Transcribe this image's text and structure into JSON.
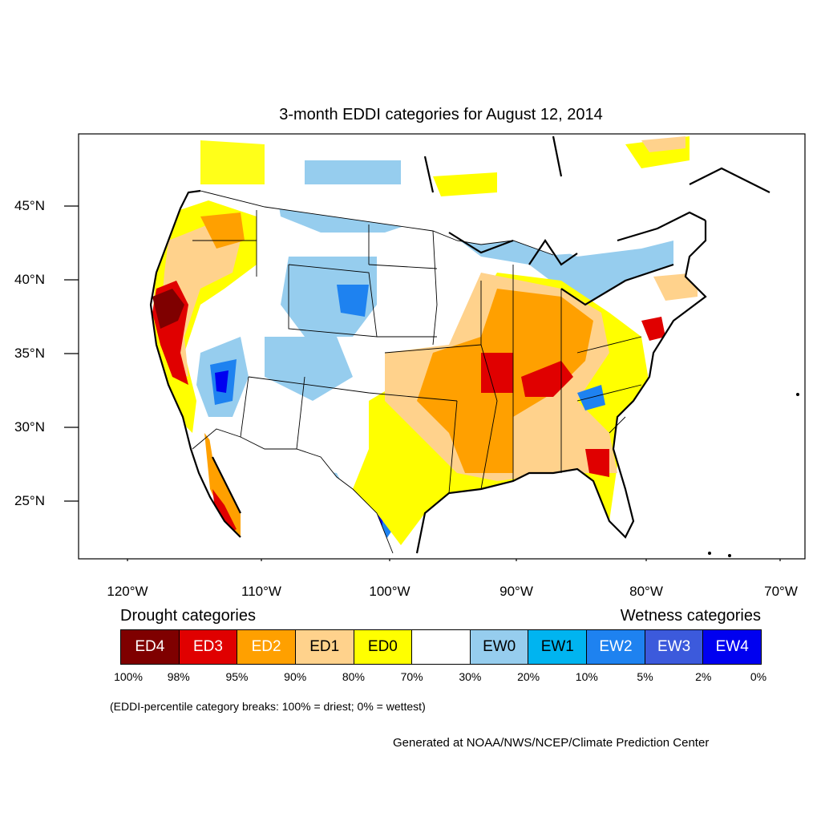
{
  "title": "3-month EDDI categories for August 12, 2014",
  "lat_labels": [
    "45°N",
    "40°N",
    "35°N",
    "30°N",
    "25°N"
  ],
  "lon_labels": [
    "120°W",
    "110°W",
    "100°W",
    "90°W",
    "80°W",
    "70°W"
  ],
  "drought_heading": "Drought categories",
  "wetness_heading": "Wetness categories",
  "legend": [
    {
      "label": "ED4",
      "color": "#7f0000",
      "text_color": "#ffffff"
    },
    {
      "label": "ED3",
      "color": "#e00000",
      "text_color": "#ffffff"
    },
    {
      "label": "ED2",
      "color": "#ffa000",
      "text_color": "#ffffff"
    },
    {
      "label": "ED1",
      "color": "#ffd28c",
      "text_color": "#000000"
    },
    {
      "label": "ED0",
      "color": "#ffff00",
      "text_color": "#000000"
    },
    {
      "label": "",
      "color": "#ffffff",
      "text_color": "#000000"
    },
    {
      "label": "EW0",
      "color": "#96cdee",
      "text_color": "#000000"
    },
    {
      "label": "EW1",
      "color": "#00b4f0",
      "text_color": "#000000"
    },
    {
      "label": "EW2",
      "color": "#1e82f0",
      "text_color": "#ffffff"
    },
    {
      "label": "EW3",
      "color": "#3c5adc",
      "text_color": "#ffffff"
    },
    {
      "label": "EW4",
      "color": "#0000f0",
      "text_color": "#ffffff"
    }
  ],
  "percent_breaks": [
    "100%",
    "98%",
    "95%",
    "90%",
    "80%",
    "70%",
    "30%",
    "20%",
    "10%",
    "5%",
    "2%",
    "0%"
  ],
  "note": "(EDDI-percentile category breaks: 100% = driest; 0% = wettest)",
  "credit": "Generated at NOAA/NWS/NCEP/Climate Prediction Center"
}
